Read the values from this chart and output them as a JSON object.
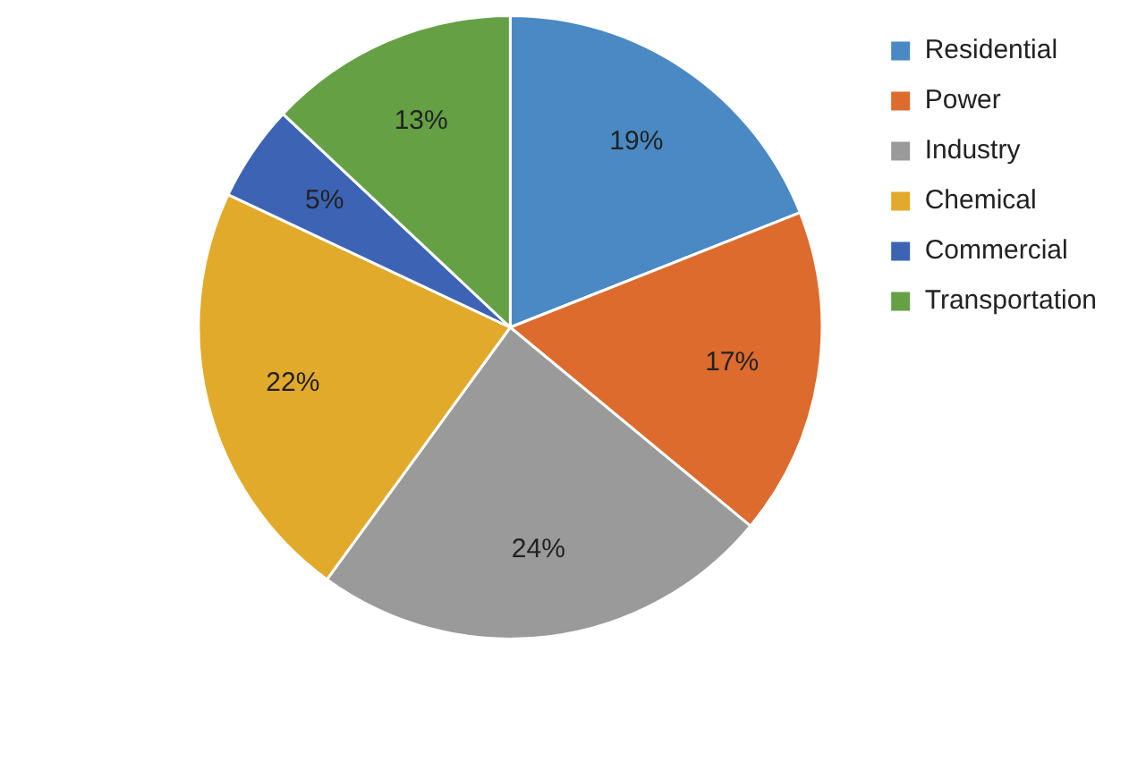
{
  "chart_data": {
    "type": "pie",
    "categories": [
      "Residential",
      "Power",
      "Industry",
      "Chemical",
      "Commercial",
      "Transportation"
    ],
    "values": [
      19,
      17,
      24,
      22,
      5,
      13
    ],
    "colors": [
      "#4a89c3",
      "#dc6b2d",
      "#9a9a9a",
      "#e2aa2b",
      "#3d64b4",
      "#65a045"
    ],
    "value_labels": [
      "19%",
      "17%",
      "24%",
      "22%",
      "5%",
      "13%"
    ],
    "legend": "top right"
  }
}
